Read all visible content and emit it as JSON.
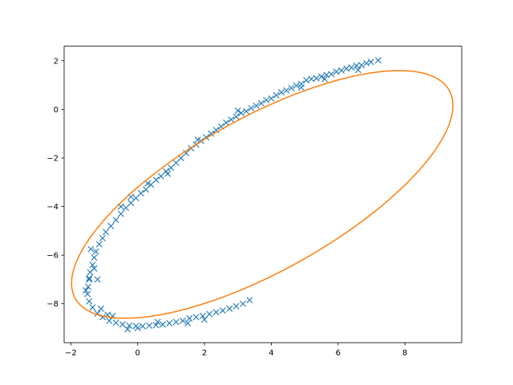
{
  "chart_data": {
    "type": "scatter",
    "title": "",
    "xlabel": "",
    "ylabel": "",
    "xlim": [
      -2.2,
      9.7
    ],
    "ylim": [
      -9.6,
      2.6
    ],
    "xticks": [
      -2,
      0,
      2,
      4,
      6,
      8
    ],
    "yticks": [
      -8,
      -6,
      -4,
      -2,
      0,
      2
    ],
    "xtick_labels": [
      "−2",
      "0",
      "2",
      "4",
      "6",
      "8"
    ],
    "ytick_labels": [
      "−8",
      "−6",
      "−4",
      "−2",
      "0",
      "2"
    ],
    "grid": false,
    "legend": "none",
    "series": [
      {
        "kind": "scatter",
        "marker": "x",
        "color": "#1f77b4",
        "points": [
          [
            7.2,
            2.02
          ],
          [
            6.98,
            1.95
          ],
          [
            6.85,
            1.9
          ],
          [
            6.7,
            1.82
          ],
          [
            6.55,
            1.8
          ],
          [
            6.4,
            1.72
          ],
          [
            6.25,
            1.68
          ],
          [
            6.1,
            1.6
          ],
          [
            5.95,
            1.55
          ],
          [
            5.8,
            1.45
          ],
          [
            5.65,
            1.42
          ],
          [
            5.5,
            1.35
          ],
          [
            5.35,
            1.28
          ],
          [
            5.2,
            1.25
          ],
          [
            5.05,
            1.2
          ],
          [
            4.9,
            1.05
          ],
          [
            4.75,
            0.98
          ],
          [
            4.6,
            0.88
          ],
          [
            4.45,
            0.78
          ],
          [
            4.3,
            0.7
          ],
          [
            4.15,
            0.58
          ],
          [
            4.0,
            0.45
          ],
          [
            3.85,
            0.38
          ],
          [
            3.7,
            0.25
          ],
          [
            3.55,
            0.15
          ],
          [
            3.4,
            0.05
          ],
          [
            3.25,
            -0.08
          ],
          [
            3.1,
            -0.15
          ],
          [
            2.95,
            -0.3
          ],
          [
            2.8,
            -0.42
          ],
          [
            2.65,
            -0.55
          ],
          [
            2.5,
            -0.7
          ],
          [
            2.35,
            -0.85
          ],
          [
            2.2,
            -1.0
          ],
          [
            2.05,
            -1.15
          ],
          [
            1.9,
            -1.3
          ],
          [
            1.75,
            -1.45
          ],
          [
            1.6,
            -1.6
          ],
          [
            1.45,
            -1.8
          ],
          [
            1.3,
            -2.0
          ],
          [
            1.15,
            -2.2
          ],
          [
            1.0,
            -2.4
          ],
          [
            0.85,
            -2.55
          ],
          [
            0.7,
            -2.75
          ],
          [
            0.55,
            -2.9
          ],
          [
            0.4,
            -3.1
          ],
          [
            0.25,
            -3.3
          ],
          [
            0.1,
            -3.45
          ],
          [
            -0.05,
            -3.65
          ],
          [
            -0.2,
            -3.85
          ],
          [
            -0.35,
            -4.05
          ],
          [
            -0.5,
            -4.3
          ],
          [
            -0.65,
            -4.55
          ],
          [
            -0.8,
            -4.8
          ],
          [
            -0.95,
            -5.05
          ],
          [
            -1.05,
            -5.3
          ],
          [
            -1.15,
            -5.55
          ],
          [
            -1.25,
            -5.85
          ],
          [
            -1.3,
            -6.1
          ],
          [
            -1.35,
            -6.4
          ],
          [
            -1.42,
            -6.7
          ],
          [
            -1.45,
            -7.0
          ],
          [
            -1.48,
            -7.3
          ],
          [
            -1.5,
            -7.6
          ],
          [
            -1.45,
            -7.9
          ],
          [
            -1.35,
            -8.15
          ],
          [
            -1.2,
            -8.4
          ],
          [
            -1.05,
            -8.55
          ],
          [
            -0.85,
            -8.7
          ],
          [
            -0.65,
            -8.78
          ],
          [
            -0.45,
            -8.85
          ],
          [
            -0.25,
            -8.9
          ],
          [
            -0.05,
            -8.92
          ],
          [
            0.15,
            -8.92
          ],
          [
            0.35,
            -8.9
          ],
          [
            0.55,
            -8.88
          ],
          [
            0.75,
            -8.85
          ],
          [
            0.95,
            -8.8
          ],
          [
            1.15,
            -8.75
          ],
          [
            1.35,
            -8.7
          ],
          [
            1.55,
            -8.6
          ],
          [
            1.75,
            -8.55
          ],
          [
            1.95,
            -8.5
          ],
          [
            2.15,
            -8.42
          ],
          [
            2.35,
            -8.35
          ],
          [
            2.55,
            -8.28
          ],
          [
            2.75,
            -8.2
          ],
          [
            2.95,
            -8.1
          ],
          [
            3.15,
            -8.0
          ],
          [
            3.35,
            -7.85
          ],
          [
            -1.4,
            -5.75
          ],
          [
            -1.3,
            -6.55
          ],
          [
            -1.45,
            -6.95
          ],
          [
            -1.55,
            -7.45
          ],
          [
            -1.2,
            -7.0
          ],
          [
            -0.9,
            -8.45
          ],
          [
            0.0,
            -9.0
          ],
          [
            0.6,
            -8.75
          ],
          [
            1.5,
            -8.8
          ],
          [
            2.0,
            -8.65
          ],
          [
            -0.3,
            -9.05
          ],
          [
            -0.75,
            -8.5
          ],
          [
            -1.1,
            -8.2
          ],
          [
            0.9,
            -2.65
          ],
          [
            1.8,
            -1.25
          ],
          [
            3.0,
            -0.05
          ],
          [
            4.9,
            0.9
          ],
          [
            5.6,
            1.25
          ],
          [
            6.6,
            1.62
          ],
          [
            -0.5,
            -4.0
          ],
          [
            -0.2,
            -3.6
          ],
          [
            0.3,
            -3.05
          ]
        ]
      },
      {
        "kind": "line",
        "color": "#ff7f0e",
        "ellipse": {
          "cx": 3.73,
          "cy": -3.5,
          "a": 7.1,
          "b": 2.85,
          "angle_deg": 40.5
        }
      }
    ]
  }
}
